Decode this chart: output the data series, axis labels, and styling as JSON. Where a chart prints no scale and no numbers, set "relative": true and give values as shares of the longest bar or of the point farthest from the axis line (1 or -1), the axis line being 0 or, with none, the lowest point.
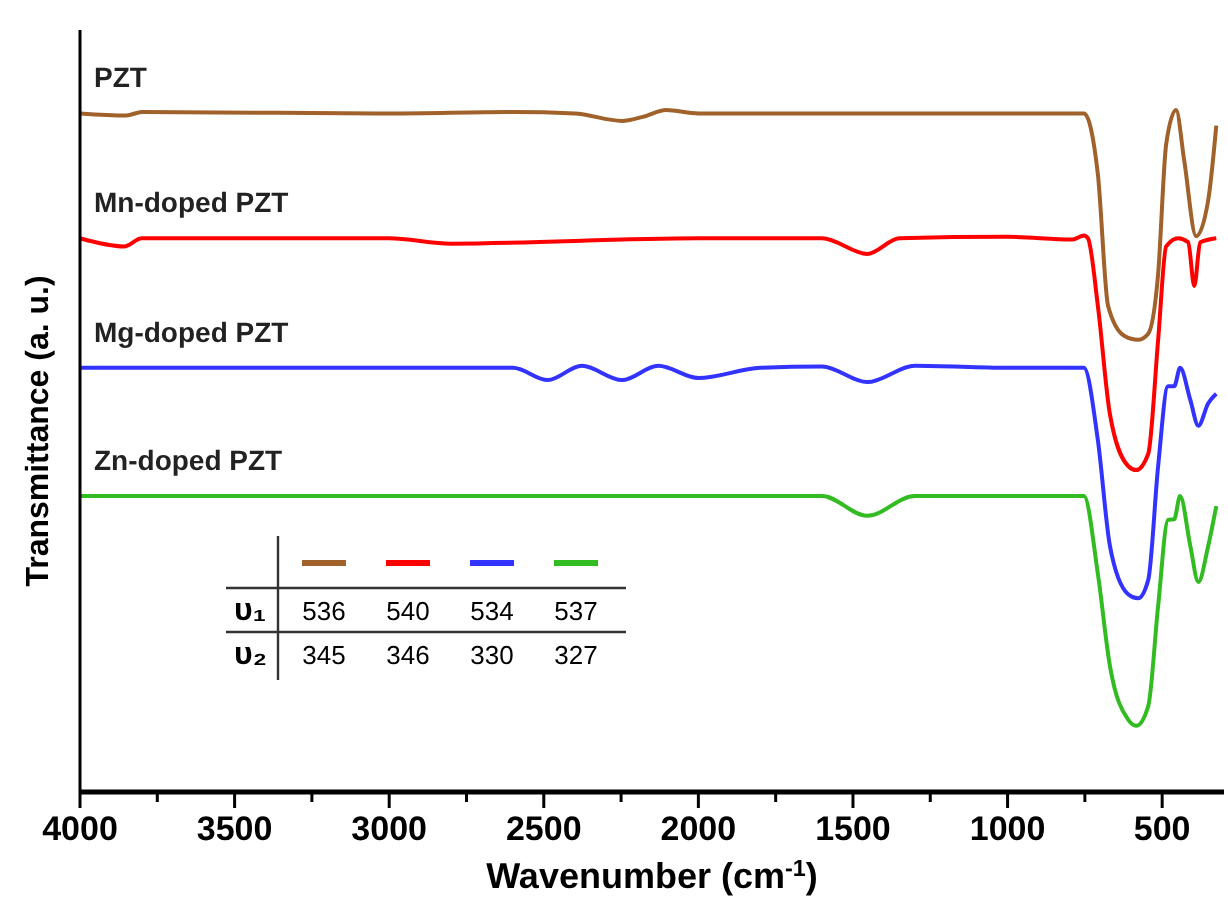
{
  "chart_data": {
    "type": "line",
    "relative": true,
    "xlabel": "Wavenumber (cm$^{-1}$)",
    "ylabel": "Transmittance (a. u.)",
    "xlim": [
      4000,
      300
    ],
    "xticks": [
      4000,
      {
        "value": 3750,
        "label": null
      },
      3500,
      {
        "value": 3250,
        "label": null
      },
      3000,
      {
        "value": 2750,
        "label": null
      },
      2500,
      {
        "value": 2250,
        "label": null
      },
      2000,
      {
        "value": 1750,
        "label": null
      },
      1500,
      {
        "value": 1250,
        "label": null
      },
      1000,
      {
        "value": 750,
        "label": null
      },
      500
    ],
    "tick_labels": "x",
    "grid": false,
    "marker": "none",
    "line_style": "solid",
    "series": [
      {
        "name": "PZT",
        "color": "#a0612a",
        "x": [
          4000,
          3850,
          3800,
          3000,
          2600,
          2400,
          2247,
          2180,
          2104,
          2000,
          1500,
          1000,
          753,
          708,
          675,
          623,
          578,
          545,
          513,
          487,
          455,
          429,
          390,
          351,
          325
        ],
        "values": [
          0.995,
          0.992,
          0.997,
          0.995,
          0.997,
          0.995,
          0.984,
          0.99,
          1.0,
          0.995,
          0.995,
          0.995,
          0.995,
          0.906,
          0.713,
          0.669,
          0.663,
          0.672,
          0.76,
          0.95,
          1.0,
          0.927,
          0.815,
          0.868,
          0.977
        ]
      },
      {
        "name": "Mn-doped PZT",
        "color": "#ff0000",
        "x": [
          4000,
          3857,
          3800,
          3000,
          2800,
          2000,
          1600,
          1454,
          1350,
          1000,
          790,
          753,
          740,
          708,
          669,
          610,
          584,
          545,
          513,
          487,
          448,
          416,
          396,
          377,
          325
        ],
        "values": [
          0.812,
          0.8,
          0.812,
          0.812,
          0.804,
          0.812,
          0.812,
          0.789,
          0.812,
          0.814,
          0.81,
          0.816,
          0.812,
          0.713,
          0.554,
          0.478,
          0.472,
          0.496,
          0.663,
          0.8,
          0.812,
          0.806,
          0.742,
          0.806,
          0.812
        ]
      },
      {
        "name": "Mg-doped PZT",
        "color": "#3333ff",
        "x": [
          4000,
          3800,
          3000,
          2600,
          2487,
          2377,
          2247,
          2130,
          2000,
          1800,
          1600,
          1454,
          1300,
          1000,
          753,
          708,
          669,
          610,
          578,
          545,
          513,
          481,
          461,
          442,
          409,
          383,
          351,
          325
        ],
        "values": [
          0.622,
          0.622,
          0.622,
          0.622,
          0.604,
          0.625,
          0.604,
          0.625,
          0.607,
          0.622,
          0.624,
          0.601,
          0.625,
          0.622,
          0.622,
          0.516,
          0.361,
          0.29,
          0.284,
          0.311,
          0.478,
          0.595,
          0.595,
          0.622,
          0.575,
          0.537,
          0.57,
          0.584
        ]
      },
      {
        "name": "Zn-doped PZT",
        "color": "#33bb22",
        "x": [
          4000,
          3000,
          2000,
          1600,
          1454,
          1300,
          1000,
          753,
          708,
          669,
          610,
          584,
          545,
          513,
          481,
          461,
          442,
          409,
          383,
          351,
          325
        ],
        "values": [
          0.434,
          0.434,
          0.434,
          0.434,
          0.405,
          0.434,
          0.434,
          0.434,
          0.32,
          0.185,
          0.106,
          0.097,
          0.126,
          0.273,
          0.399,
          0.4,
          0.434,
          0.361,
          0.308,
          0.361,
          0.419
        ]
      }
    ],
    "annotations": [
      "υ₁",
      "536",
      "540",
      "534",
      "537",
      "υ₂",
      "345",
      "346",
      "330",
      "327"
    ]
  }
}
